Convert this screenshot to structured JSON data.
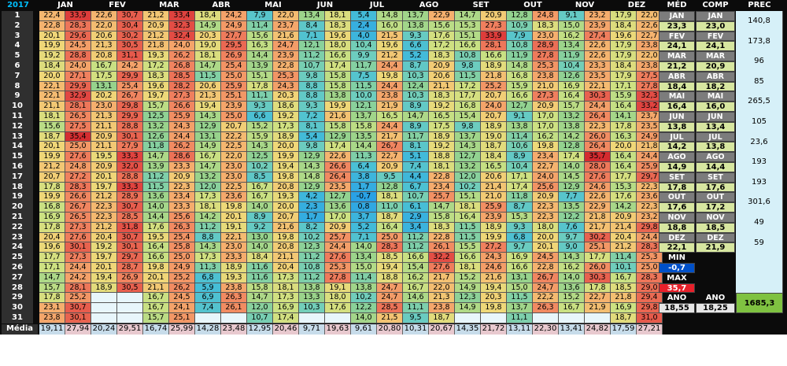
{
  "sheet": {
    "year": "2017",
    "months": [
      "JAN",
      "FEV",
      "MAR",
      "ABR",
      "MAI",
      "JUN",
      "JUL",
      "AGO",
      "SET",
      "OUT",
      "NOV",
      "DEZ"
    ],
    "summary_headers": [
      "MÉD",
      "COMP",
      "PREC"
    ],
    "days": [
      "1",
      "2",
      "3",
      "4",
      "5",
      "6",
      "7",
      "8",
      "9",
      "10",
      "11",
      "12",
      "13",
      "14",
      "15",
      "16",
      "17",
      "18",
      "19",
      "20",
      "21",
      "22",
      "23",
      "24",
      "25",
      "26",
      "27",
      "28",
      "29",
      "30",
      "31"
    ],
    "media_label": "Média",
    "temps": [
      [
        "22,4",
        "33,9",
        "22,6",
        "30,7",
        "21,2",
        "33,4",
        "18,4",
        "24,2",
        "7,9",
        "22,0",
        "13,4",
        "18,1",
        "5,4",
        "14,8",
        "13,7",
        "22,9",
        "14,7",
        "20,9",
        "12,8",
        "24,8",
        "9,1",
        "23,2",
        "17,9",
        "22,0"
      ],
      [
        "22,8",
        "28,3",
        "22,0",
        "30,4",
        "20,9",
        "32,3",
        "14,9",
        "24,9",
        "11,4",
        "23,7",
        "8,4",
        "18,3",
        "2,4",
        "16,0",
        "13,8",
        "15,6",
        "15,3",
        "27,3",
        "10,9",
        "18,3",
        "15,0",
        "23,9",
        "18,4",
        "22,6"
      ],
      [
        "20,1",
        "29,6",
        "20,6",
        "30,2",
        "21,2",
        "32,4",
        "20,3",
        "27,7",
        "15,6",
        "21,6",
        "7,1",
        "19,6",
        "4,0",
        "21,5",
        "9,3",
        "17,6",
        "15,1",
        "33,9",
        "7,9",
        "23,0",
        "16,2",
        "27,4",
        "19,6",
        "22,7"
      ],
      [
        "19,9",
        "24,5",
        "21,3",
        "30,5",
        "21,8",
        "24,0",
        "19,0",
        "29,5",
        "16,3",
        "24,7",
        "12,1",
        "18,0",
        "10,4",
        "19,6",
        "6,6",
        "17,2",
        "16,6",
        "28,1",
        "10,8",
        "28,9",
        "13,4",
        "22,6",
        "17,9",
        "23,8"
      ],
      [
        "19,2",
        "28,8",
        "20,8",
        "31,1",
        "19,3",
        "26,2",
        "18,1",
        "26,9",
        "14,4",
        "23,9",
        "11,2",
        "16,6",
        "9,9",
        "21,2",
        "5,2",
        "18,3",
        "10,8",
        "16,6",
        "11,9",
        "27,8",
        "11,9",
        "22,6",
        "17,9",
        "22,0"
      ],
      [
        "18,4",
        "24,0",
        "16,7",
        "24,2",
        "17,2",
        "26,8",
        "14,7",
        "25,4",
        "13,9",
        "22,8",
        "10,7",
        "17,4",
        "11,7",
        "24,4",
        "8,7",
        "20,9",
        "9,8",
        "18,9",
        "14,8",
        "25,3",
        "10,4",
        "23,3",
        "18,4",
        "23,8"
      ],
      [
        "20,0",
        "27,1",
        "17,5",
        "29,9",
        "18,3",
        "28,5",
        "11,5",
        "25,0",
        "15,1",
        "25,3",
        "9,8",
        "15,8",
        "7,5",
        "19,8",
        "10,3",
        "20,6",
        "11,5",
        "21,8",
        "16,8",
        "23,8",
        "12,6",
        "23,5",
        "17,9",
        "27,5"
      ],
      [
        "22,1",
        "29,9",
        "13,1",
        "25,4",
        "19,6",
        "28,2",
        "20,6",
        "25,9",
        "17,8",
        "24,3",
        "8,8",
        "15,8",
        "11,5",
        "24,4",
        "12,4",
        "21,1",
        "17,2",
        "25,2",
        "15,9",
        "21,0",
        "16,9",
        "22,1",
        "17,1",
        "27,8"
      ],
      [
        "22,1",
        "32,9",
        "20,2",
        "26,7",
        "19,7",
        "27,3",
        "21,3",
        "25,1",
        "11,1",
        "20,3",
        "8,8",
        "13,8",
        "10,0",
        "23,8",
        "10,3",
        "18,3",
        "17,7",
        "20,7",
        "16,6",
        "27,3",
        "16,4",
        "30,3",
        "15,9",
        "32,3"
      ],
      [
        "21,1",
        "28,1",
        "23,0",
        "29,8",
        "15,7",
        "26,6",
        "19,4",
        "23,9",
        "9,3",
        "18,6",
        "9,3",
        "19,9",
        "12,1",
        "21,9",
        "8,9",
        "19,2",
        "16,8",
        "24,0",
        "12,7",
        "20,9",
        "15,7",
        "24,4",
        "16,4",
        "33,2"
      ],
      [
        "18,1",
        "26,5",
        "21,3",
        "29,9",
        "12,5",
        "25,9",
        "14,3",
        "25,0",
        "6,6",
        "19,2",
        "7,2",
        "21,6",
        "13,7",
        "16,5",
        "14,7",
        "16,5",
        "15,4",
        "20,7",
        "9,1",
        "17,0",
        "13,2",
        "26,4",
        "14,1",
        "23,7"
      ],
      [
        "15,6",
        "27,5",
        "21,1",
        "28,8",
        "13,2",
        "24,3",
        "12,9",
        "20,7",
        "15,2",
        "17,3",
        "8,1",
        "15,8",
        "15,8",
        "24,4",
        "8,9",
        "17,5",
        "9,8",
        "18,9",
        "13,8",
        "17,0",
        "13,8",
        "22,3",
        "17,8",
        "23,5"
      ],
      [
        "18,7",
        "35,4",
        "20,9",
        "30,1",
        "12,6",
        "24,4",
        "13,1",
        "22,2",
        "15,9",
        "18,9",
        "5,4",
        "12,9",
        "13,5",
        "21,7",
        "11,7",
        "18,9",
        "13,7",
        "19,0",
        "11,4",
        "16,2",
        "14,2",
        "26,0",
        "16,3",
        "24,9"
      ],
      [
        "20,1",
        "25,0",
        "21,1",
        "27,9",
        "11,8",
        "26,2",
        "14,9",
        "22,5",
        "14,3",
        "20,0",
        "9,8",
        "17,4",
        "14,4",
        "26,7",
        "8,1",
        "19,2",
        "14,3",
        "18,7",
        "10,6",
        "19,8",
        "12,8",
        "26,4",
        "20,0",
        "21,8"
      ],
      [
        "19,9",
        "27,6",
        "19,5",
        "33,3",
        "14,7",
        "28,6",
        "16,7",
        "22,0",
        "12,5",
        "19,9",
        "12,9",
        "22,6",
        "11,3",
        "22,7",
        "5,1",
        "18,8",
        "12,7",
        "18,4",
        "8,9",
        "23,4",
        "17,4",
        "35,7",
        "16,4",
        "24,4"
      ],
      [
        "21,2",
        "24,8",
        "20,9",
        "32,0",
        "13,9",
        "23,3",
        "14,7",
        "23,0",
        "10,2",
        "19,4",
        "14,3",
        "26,6",
        "6,4",
        "20,9",
        "7,4",
        "18,1",
        "13,2",
        "16,5",
        "10,4",
        "22,7",
        "14,0",
        "28,0",
        "16,4",
        "25,9"
      ],
      [
        "20,7",
        "27,2",
        "20,1",
        "28,8",
        "11,2",
        "20,9",
        "13,2",
        "23,0",
        "8,5",
        "19,8",
        "14,8",
        "26,4",
        "3,8",
        "9,5",
        "4,4",
        "22,8",
        "12,0",
        "20,6",
        "17,1",
        "24,0",
        "14,5",
        "27,6",
        "17,7",
        "29,7"
      ],
      [
        "17,8",
        "28,3",
        "19,7",
        "33,3",
        "11,5",
        "22,3",
        "12,0",
        "22,5",
        "16,7",
        "20,8",
        "12,9",
        "23,5",
        "1,7",
        "12,8",
        "6,7",
        "23,4",
        "10,2",
        "21,4",
        "17,4",
        "25,6",
        "12,9",
        "24,6",
        "15,3",
        "22,3"
      ],
      [
        "19,9",
        "26,6",
        "21,2",
        "28,9",
        "13,6",
        "23,4",
        "17,3",
        "23,6",
        "16,7",
        "19,3",
        "4,2",
        "12,7",
        "-0,7",
        "18,1",
        "10,7",
        "25,7",
        "15,1",
        "21,0",
        "11,8",
        "20,9",
        "7,7",
        "22,6",
        "17,6",
        "23,6"
      ],
      [
        "16,8",
        "26,7",
        "22,3",
        "30,7",
        "14,0",
        "23,3",
        "18,1",
        "19,8",
        "14,0",
        "20,0",
        "2,3",
        "13,6",
        "0,8",
        "11,0",
        "6,1",
        "14,7",
        "18,1",
        "25,9",
        "8,7",
        "22,3",
        "13,5",
        "22,9",
        "14,2",
        "22,3"
      ],
      [
        "16,9",
        "26,5",
        "22,3",
        "28,5",
        "14,4",
        "25,6",
        "14,2",
        "20,1",
        "8,9",
        "20,7",
        "1,7",
        "17,0",
        "3,7",
        "18,7",
        "2,9",
        "15,8",
        "16,4",
        "23,9",
        "15,3",
        "22,3",
        "12,2",
        "21,8",
        "20,9",
        "23,2"
      ],
      [
        "17,8",
        "27,3",
        "21,2",
        "31,8",
        "17,6",
        "26,3",
        "11,2",
        "19,1",
        "9,2",
        "21,6",
        "8,2",
        "20,9",
        "5,2",
        "16,4",
        "3,4",
        "18,3",
        "11,5",
        "18,9",
        "9,3",
        "18,0",
        "7,6",
        "21,7",
        "21,4",
        "29,8"
      ],
      [
        "20,4",
        "27,6",
        "20,4",
        "30,7",
        "19,5",
        "25,4",
        "8,8",
        "22,1",
        "13,0",
        "19,8",
        "10,2",
        "25,7",
        "7,1",
        "25,0",
        "11,2",
        "22,8",
        "11,5",
        "19,9",
        "6,8",
        "20,0",
        "9,7",
        "30,2",
        "20,4",
        "24,4"
      ],
      [
        "19,6",
        "30,1",
        "19,2",
        "30,1",
        "16,4",
        "25,8",
        "14,3",
        "23,0",
        "14,0",
        "20,8",
        "12,3",
        "24,4",
        "14,0",
        "28,3",
        "11,2",
        "26,1",
        "15,5",
        "27,2",
        "9,7",
        "20,1",
        "9,0",
        "25,1",
        "21,2",
        "28,3"
      ],
      [
        "17,7",
        "27,3",
        "19,7",
        "29,7",
        "16,6",
        "25,0",
        "17,3",
        "23,3",
        "18,4",
        "21,1",
        "11,2",
        "27,6",
        "13,4",
        "18,5",
        "16,6",
        "32,2",
        "16,6",
        "24,3",
        "16,9",
        "24,5",
        "14,3",
        "17,7",
        "11,4",
        "25,3"
      ],
      [
        "17,1",
        "24,4",
        "20,1",
        "28,7",
        "19,8",
        "24,9",
        "11,3",
        "18,9",
        "11,6",
        "20,4",
        "10,8",
        "25,3",
        "15,0",
        "19,4",
        "15,4",
        "27,6",
        "18,1",
        "24,6",
        "16,6",
        "22,8",
        "16,2",
        "26,0",
        "10,1",
        "25,0"
      ],
      [
        "14,7",
        "24,2",
        "19,4",
        "26,9",
        "20,1",
        "25,2",
        "6,8",
        "19,3",
        "11,6",
        "17,3",
        "11,2",
        "27,8",
        "11,4",
        "18,8",
        "16,2",
        "21,7",
        "15,2",
        "21,6",
        "13,1",
        "26,7",
        "14,0",
        "30,3",
        "16,7",
        "28,3"
      ],
      [
        "15,7",
        "28,1",
        "18,9",
        "30,5",
        "21,1",
        "26,2",
        "5,9",
        "23,8",
        "15,8",
        "18,1",
        "13,8",
        "19,1",
        "13,8",
        "24,7",
        "16,7",
        "22,0",
        "14,9",
        "19,4",
        "15,0",
        "24,7",
        "13,6",
        "17,8",
        "18,5",
        "29,0"
      ],
      [
        "17,8",
        "25,2",
        "",
        "",
        "16,7",
        "24,5",
        "6,9",
        "26,3",
        "14,7",
        "17,3",
        "13,3",
        "18,0",
        "10,2",
        "24,7",
        "14,6",
        "21,3",
        "12,3",
        "20,3",
        "11,5",
        "22,2",
        "15,2",
        "22,7",
        "21,8",
        "29,4"
      ],
      [
        "23,1",
        "30,7",
        "",
        "",
        "16,7",
        "24,1",
        "7,4",
        "26,1",
        "12,0",
        "16,9",
        "10,3",
        "17,6",
        "12,2",
        "28,5",
        "11,1",
        "23,8",
        "14,9",
        "19,8",
        "13,7",
        "26,3",
        "16,7",
        "21,9",
        "16,9",
        "29,8"
      ],
      [
        "23,8",
        "30,1",
        "",
        "",
        "15,7",
        "25,1",
        "",
        "",
        "10,7",
        "17,4",
        "",
        "",
        "14,0",
        "21,5",
        "9,5",
        "18,7",
        "",
        "",
        "11,1",
        "",
        "",
        "",
        "18,7",
        "31,0"
      ]
    ],
    "media_values": [
      "19,11",
      "27,94",
      "20,24",
      "29,51",
      "16,74",
      "25,99",
      "14,28",
      "23,48",
      "12,95",
      "20,46",
      "9,71",
      "19,63",
      "9,61",
      "20,80",
      "10,31",
      "20,67",
      "14,35",
      "21,72",
      "13,11",
      "22,30",
      "13,41",
      "24,82",
      "17,59",
      "27,21"
    ],
    "monthly_summary": [
      {
        "month": "JAN",
        "med": "23,3",
        "comp": "23,0",
        "prec": "140,8"
      },
      {
        "month": "FEV",
        "med": "24,1",
        "comp": "24,1",
        "prec": "173,8"
      },
      {
        "month": "MAR",
        "med": "21,2",
        "comp": "20,9",
        "prec": "96"
      },
      {
        "month": "ABR",
        "med": "18,4",
        "comp": "18,2",
        "prec": "85"
      },
      {
        "month": "MAI",
        "med": "16,4",
        "comp": "16,0",
        "prec": "265,5"
      },
      {
        "month": "JUN",
        "med": "13,8",
        "comp": "13,4",
        "prec": "105"
      },
      {
        "month": "JUL",
        "med": "14,2",
        "comp": "13,8",
        "prec": "23,6"
      },
      {
        "month": "AGO",
        "med": "14,9",
        "comp": "14,4",
        "prec": "193"
      },
      {
        "month": "SET",
        "med": "17,8",
        "comp": "17,6",
        "prec": "193"
      },
      {
        "month": "OUT",
        "med": "17,6",
        "comp": "17,2",
        "prec": "301,6"
      },
      {
        "month": "NOV",
        "med": "18,8",
        "comp": "18,5",
        "prec": "49"
      },
      {
        "month": "DEZ",
        "med": "22,1",
        "comp": "21,9",
        "prec": "59"
      }
    ],
    "min_label": "MIN",
    "min_value": "-0,7",
    "max_label": "MAX",
    "max_value": "35,7",
    "ano_label": "ANO",
    "ano_med": "18,55",
    "ano_comp": "18,25",
    "ano_prec": "1685,3"
  },
  "colors": {
    "background": "#0b0b0b",
    "header_text": "#ffffff",
    "year_text": "#00bfff",
    "min_box": "#0050c8",
    "max_box": "#e8202a",
    "summary_val": "#d7e6a0",
    "annual_prec": "#7fc241"
  }
}
